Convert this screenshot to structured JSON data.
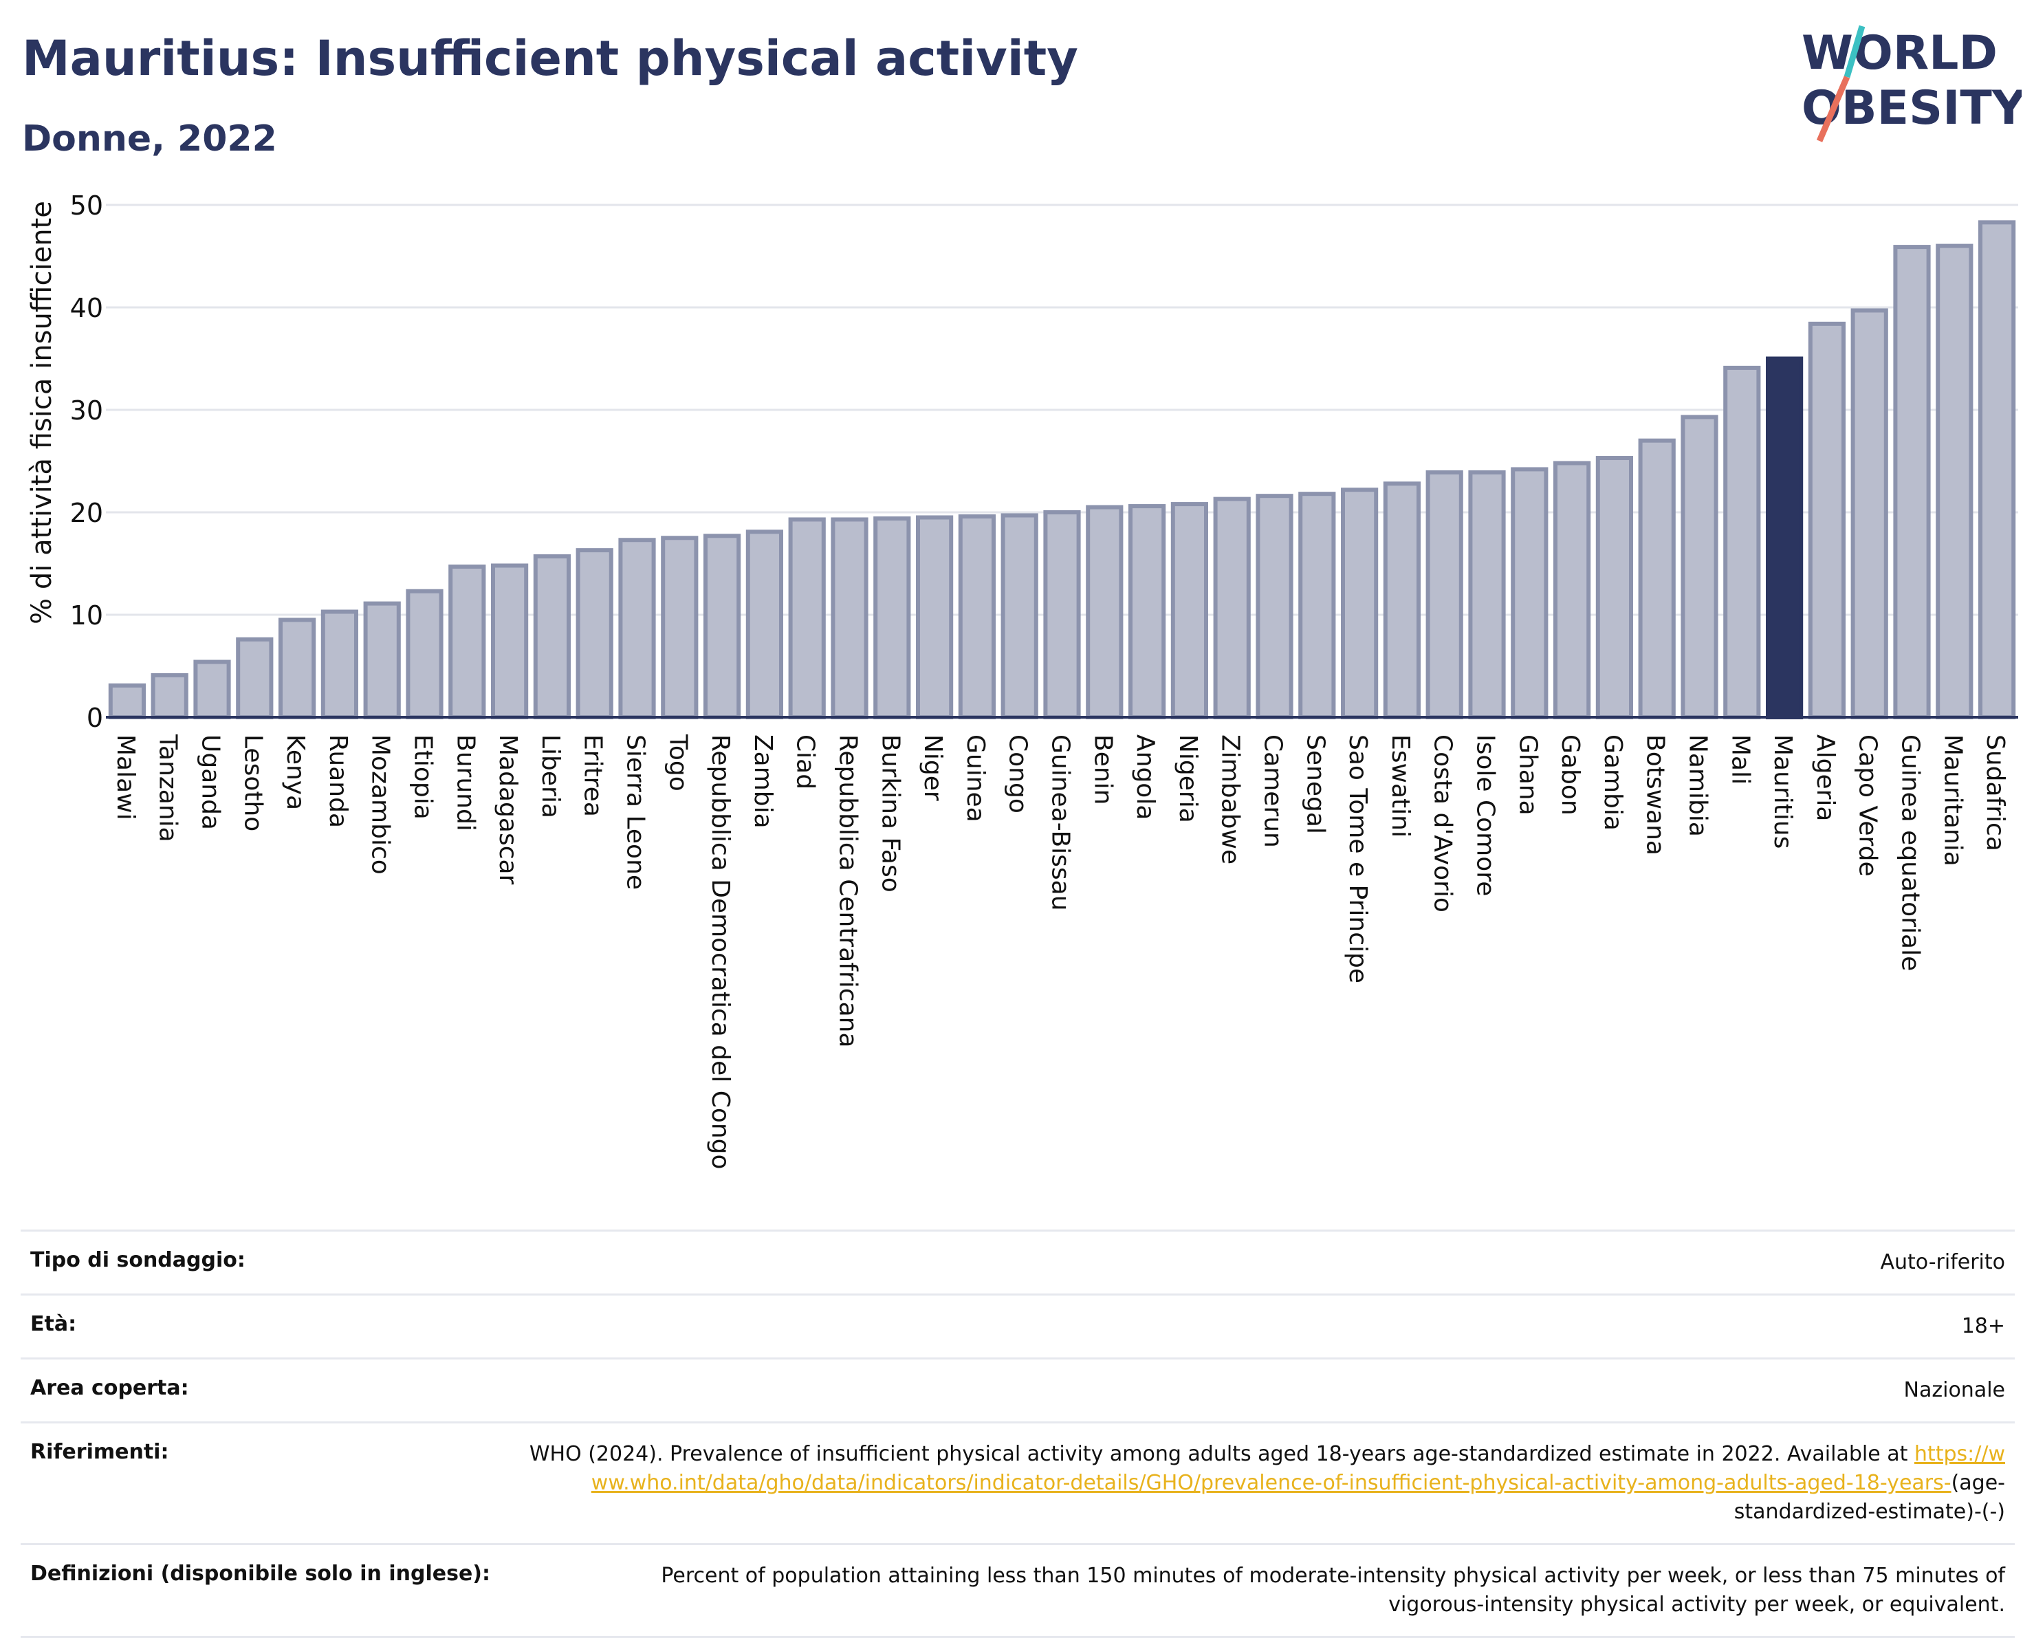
{
  "header": {
    "title": "Mauritius: Insufficient physical activity",
    "subtitle": "Donne, 2022",
    "logo_text_line1": "WORLD",
    "logo_text_line2": "OBESITY"
  },
  "colors": {
    "navy": "#2b3560",
    "bar_fill": "#b9bdcd",
    "bar_stroke": "#8c93ad",
    "highlight": "#2b3560",
    "link": "#e8b21c",
    "logo_slash_teal": "#3cc0c3",
    "logo_slash_coral": "#e8705c"
  },
  "chart_data": {
    "type": "bar",
    "title": "Mauritius: Insufficient physical activity",
    "subtitle": "Donne, 2022",
    "xlabel": "",
    "ylabel": "% di attività fisica insufficiente",
    "ylim": [
      0,
      50
    ],
    "yticks": [
      0,
      10,
      20,
      30,
      40,
      50
    ],
    "grid": true,
    "highlight": "Mauritius",
    "categories": [
      "Malawi",
      "Tanzania",
      "Uganda",
      "Lesotho",
      "Kenya",
      "Ruanda",
      "Mozambico",
      "Etiopia",
      "Burundi",
      "Madagascar",
      "Liberia",
      "Eritrea",
      "Sierra Leone",
      "Togo",
      "Repubblica Democratica del Congo",
      "Zambia",
      "Ciad",
      "Repubblica Centrafricana",
      "Burkina Faso",
      "Niger",
      "Guinea",
      "Congo",
      "Guinea-Bissau",
      "Benin",
      "Angola",
      "Nigeria",
      "Zimbabwe",
      "Camerun",
      "Senegal",
      "Sao Tome e Principe",
      "Eswatini",
      "Costa d'Avorio",
      "Isole Comore",
      "Ghana",
      "Gabon",
      "Gambia",
      "Botswana",
      "Namibia",
      "Mali",
      "Mauritius",
      "Algeria",
      "Capo Verde",
      "Guinea equatoriale",
      "Mauritania",
      "Sudafrica"
    ],
    "values": [
      3.1,
      4.1,
      5.4,
      7.6,
      9.5,
      10.3,
      11.1,
      12.3,
      14.7,
      14.8,
      15.7,
      16.3,
      17.3,
      17.5,
      17.7,
      18.1,
      19.3,
      19.3,
      19.4,
      19.5,
      19.6,
      19.7,
      20.0,
      20.5,
      20.6,
      20.8,
      21.3,
      21.6,
      21.8,
      22.2,
      22.8,
      23.9,
      23.9,
      24.2,
      24.8,
      25.3,
      27.0,
      29.3,
      34.1,
      35.0,
      38.4,
      39.7,
      45.9,
      46.0,
      48.3
    ]
  },
  "info": {
    "survey_type": {
      "label": "Tipo di sondaggio:",
      "value": "Auto-riferito"
    },
    "age": {
      "label": "Età:",
      "value": "18+"
    },
    "area": {
      "label": "Area coperta:",
      "value": "Nazionale"
    },
    "references": {
      "label": "Riferimenti:",
      "text": "WHO (2024). Prevalence of insufficient physical activity among adults aged 18-years age-standardized estimate in 2022. Available at",
      "link": "https://www.who.int/data/gho/data/indicators/indicator-details/GHO/prevalence-of-insufficient-physical-activity-among-adults-aged-18-years-",
      "suffix": "(age-standardized-estimate)-(-)"
    },
    "definitions": {
      "label": "Definizioni (disponibile solo in inglese):",
      "value": "Percent of population attaining less than 150 minutes of moderate-intensity physical activity per week, or less than 75 minutes of vigorous-intensity physical activity per week, or equivalent."
    }
  }
}
